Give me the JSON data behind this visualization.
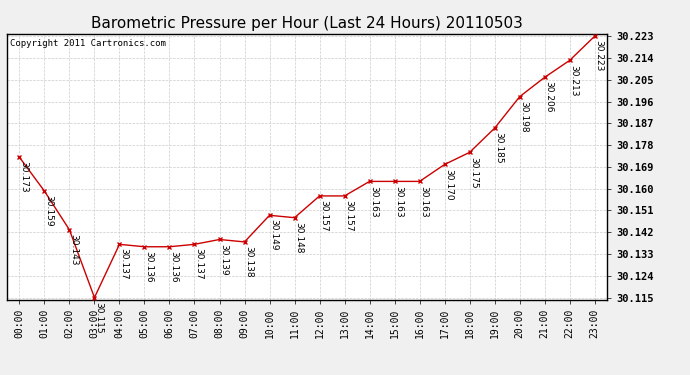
{
  "title": "Barometric Pressure per Hour (Last 24 Hours) 20110503",
  "copyright": "Copyright 2011 Cartronics.com",
  "hours": [
    "00:00",
    "01:00",
    "02:00",
    "03:00",
    "04:00",
    "05:00",
    "06:00",
    "07:00",
    "08:00",
    "09:00",
    "10:00",
    "11:00",
    "12:00",
    "13:00",
    "14:00",
    "15:00",
    "16:00",
    "17:00",
    "18:00",
    "19:00",
    "20:00",
    "21:00",
    "22:00",
    "23:00"
  ],
  "values": [
    30.173,
    30.159,
    30.143,
    30.115,
    30.137,
    30.136,
    30.136,
    30.137,
    30.139,
    30.138,
    30.149,
    30.148,
    30.157,
    30.157,
    30.163,
    30.163,
    30.163,
    30.17,
    30.175,
    30.185,
    30.198,
    30.206,
    30.213,
    30.223
  ],
  "ylim_min": 30.115,
  "ylim_max": 30.223,
  "yticks": [
    30.115,
    30.124,
    30.133,
    30.142,
    30.151,
    30.16,
    30.169,
    30.178,
    30.187,
    30.196,
    30.205,
    30.214,
    30.223
  ],
  "line_color": "#cc0000",
  "marker_color": "#cc0000",
  "fig_bg_color": "#f0f0f0",
  "plot_bg_color": "#ffffff",
  "grid_color": "#cccccc",
  "title_fontsize": 11,
  "label_fontsize": 6.5,
  "tick_fontsize": 7,
  "copyright_fontsize": 6.5,
  "annotation_rotation": 270
}
